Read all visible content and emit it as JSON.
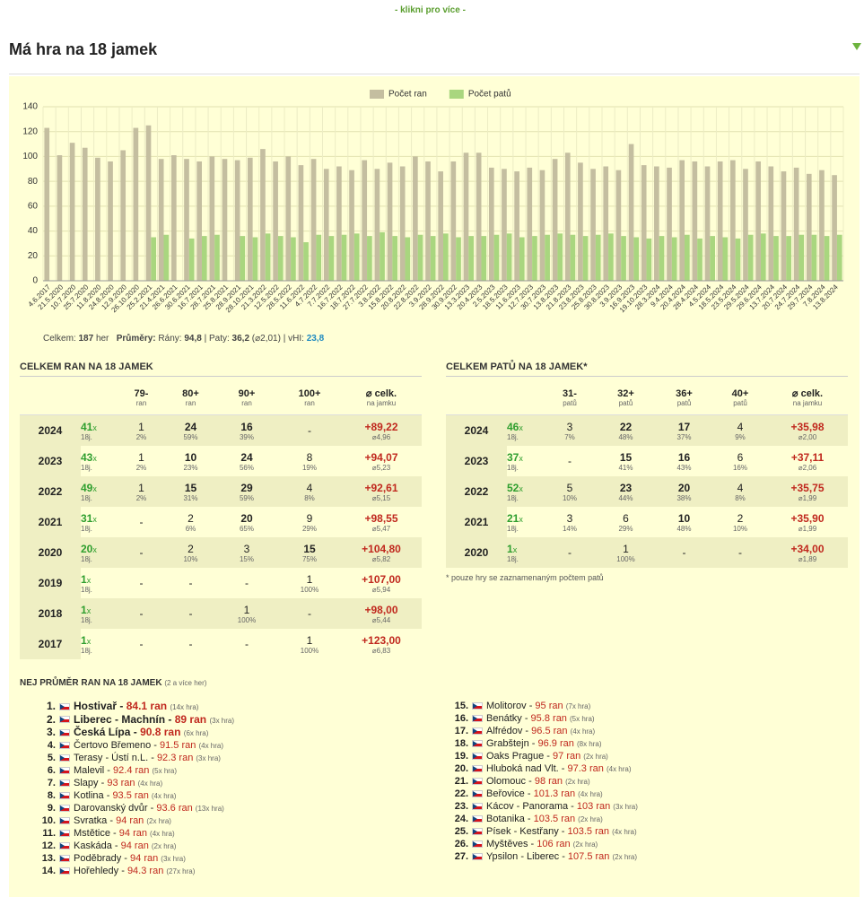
{
  "top_strip": {
    "more": "- klikni pro více -"
  },
  "header": {
    "title": "Má hra na 18 jamek"
  },
  "chart_data": {
    "type": "bar",
    "legend": "top",
    "categories": [
      "4.6.2017",
      "21.5.2020",
      "10.7.2020",
      "25.7.2020",
      "11.8.2020",
      "24.8.2020",
      "12.9.2020",
      "26.10.2020",
      "25.2.2021",
      "21.4.2021",
      "26.6.2021",
      "30.6.2021",
      "16.7.2021",
      "28.7.2021",
      "25.8.2021",
      "28.9.2021",
      "28.10.2021",
      "21.3.2022",
      "12.5.2022",
      "28.5.2022",
      "11.6.2022",
      "4.7.2022",
      "7.7.2022",
      "16.7.2022",
      "18.7.2022",
      "27.7.2022",
      "3.8.2022",
      "15.8.2022",
      "20.8.2022",
      "22.8.2022",
      "3.9.2022",
      "28.9.2022",
      "30.9.2022",
      "13.3.2023",
      "20.4.2023",
      "2.5.2023",
      "18.5.2023",
      "11.6.2023",
      "12.7.2023",
      "30.7.2023",
      "13.8.2023",
      "21.8.2023",
      "23.8.2023",
      "25.8.2023",
      "30.8.2023",
      "3.9.2023",
      "16.9.2023",
      "19.10.2023",
      "28.3.2024",
      "9.4.2024",
      "20.4.2024",
      "28.4.2024",
      "4.5.2024",
      "18.5.2024",
      "23.5.2024",
      "29.5.2024",
      "29.6.2024",
      "13.7.2024",
      "20.7.2024",
      "24.7.2024",
      "29.7.2024",
      "7.8.2024",
      "13.8.2024"
    ],
    "series": [
      {
        "name": "Počet ran",
        "color": "#c4bea0",
        "values": [
          123,
          101,
          111,
          107,
          99,
          96,
          105,
          123,
          125,
          98,
          101,
          98,
          96,
          100,
          98,
          97,
          99,
          106,
          96,
          100,
          93,
          98,
          90,
          92,
          89,
          97,
          90,
          95,
          92,
          100,
          96,
          88,
          96,
          103,
          103,
          91,
          90,
          88,
          91,
          89,
          98,
          103,
          95,
          90,
          92,
          89,
          110,
          93,
          92,
          91,
          97,
          96,
          92,
          96,
          97,
          90,
          96,
          92,
          88,
          91,
          86,
          89,
          85
        ]
      },
      {
        "name": "Počet patů",
        "color": "#a9d67f",
        "values": [
          null,
          null,
          null,
          null,
          null,
          null,
          null,
          null,
          35,
          37,
          null,
          34,
          36,
          37,
          null,
          36,
          35,
          38,
          36,
          35,
          31,
          37,
          36,
          37,
          38,
          36,
          39,
          36,
          35,
          37,
          36,
          38,
          35,
          36,
          36,
          37,
          38,
          35,
          36,
          37,
          38,
          37,
          36,
          37,
          38,
          36,
          35,
          34,
          36,
          35,
          37,
          34,
          36,
          35,
          34,
          37,
          38,
          36,
          36,
          37,
          37,
          36,
          37
        ]
      }
    ],
    "ylim": [
      0,
      140
    ],
    "yticks": [
      0,
      20,
      40,
      60,
      80,
      100,
      120,
      140
    ],
    "grid": true
  },
  "stats": {
    "celkem_label": "Celkem:",
    "celkem": "187",
    "her": "her",
    "prumery": "Průměry:",
    "rany_label": "Rány:",
    "rany": "94,8",
    "sep": "|",
    "paty_label": "Paty:",
    "paty": "36,2",
    "paty_avg": "(⌀2,01)",
    "vhi_label": "vHI:",
    "vhi": "23,8"
  },
  "tables": [
    {
      "title": "CELKEM RAN NA 18 JAMEK",
      "count_unit": "x",
      "count_sub": "18j.",
      "columns": [
        [
          "79-",
          "ran"
        ],
        [
          "80+",
          "ran"
        ],
        [
          "90+",
          "ran"
        ],
        [
          "100+",
          "ran"
        ],
        [
          "⌀ celk.",
          "na jamku"
        ]
      ],
      "rows": [
        {
          "year": "2024",
          "count": "41",
          "cells": [
            [
              "1",
              "2%"
            ],
            [
              "24",
              "59%"
            ],
            [
              "16",
              "39%"
            ],
            [
              "-"
            ]
          ],
          "total": "+89,22",
          "total_sub": "⌀4,96"
        },
        {
          "year": "2023",
          "count": "43",
          "cells": [
            [
              "1",
              "2%"
            ],
            [
              "10",
              "23%"
            ],
            [
              "24",
              "56%"
            ],
            [
              "8",
              "19%"
            ]
          ],
          "total": "+94,07",
          "total_sub": "⌀5,23"
        },
        {
          "year": "2022",
          "count": "49",
          "cells": [
            [
              "1",
              "2%"
            ],
            [
              "15",
              "31%"
            ],
            [
              "29",
              "59%"
            ],
            [
              "4",
              "8%"
            ]
          ],
          "total": "+92,61",
          "total_sub": "⌀5,15"
        },
        {
          "year": "2021",
          "count": "31",
          "cells": [
            [
              "-"
            ],
            [
              "2",
              "6%"
            ],
            [
              "20",
              "65%"
            ],
            [
              "9",
              "29%"
            ]
          ],
          "total": "+98,55",
          "total_sub": "⌀5,47"
        },
        {
          "year": "2020",
          "count": "20",
          "cells": [
            [
              "-"
            ],
            [
              "2",
              "10%"
            ],
            [
              "3",
              "15%"
            ],
            [
              "15",
              "75%"
            ]
          ],
          "total": "+104,80",
          "total_sub": "⌀5,82"
        },
        {
          "year": "2019",
          "count": "1",
          "cells": [
            [
              "-"
            ],
            [
              "-"
            ],
            [
              "-"
            ],
            [
              "1",
              "100%"
            ]
          ],
          "total": "+107,00",
          "total_sub": "⌀5,94"
        },
        {
          "year": "2018",
          "count": "1",
          "cells": [
            [
              "-"
            ],
            [
              "-"
            ],
            [
              "1",
              "100%"
            ],
            [
              "-"
            ]
          ],
          "total": "+98,00",
          "total_sub": "⌀5,44"
        },
        {
          "year": "2017",
          "count": "1",
          "cells": [
            [
              "-"
            ],
            [
              "-"
            ],
            [
              "-"
            ],
            [
              "1",
              "100%"
            ]
          ],
          "total": "+123,00",
          "total_sub": "⌀6,83"
        }
      ]
    },
    {
      "title": "CELKEM PATŮ NA 18 JAMEK*",
      "count_unit": "x",
      "count_sub": "18j.",
      "note": "* pouze hry se zaznamenaným počtem patů",
      "columns": [
        [
          "31-",
          "patů"
        ],
        [
          "32+",
          "patů"
        ],
        [
          "36+",
          "patů"
        ],
        [
          "40+",
          "patů"
        ],
        [
          "⌀ celk.",
          "na jamku"
        ]
      ],
      "rows": [
        {
          "year": "2024",
          "count": "46",
          "cells": [
            [
              "3",
              "7%"
            ],
            [
              "22",
              "48%"
            ],
            [
              "17",
              "37%"
            ],
            [
              "4",
              "9%"
            ]
          ],
          "total": "+35,98",
          "total_sub": "⌀2,00"
        },
        {
          "year": "2023",
          "count": "37",
          "cells": [
            [
              "-"
            ],
            [
              "15",
              "41%"
            ],
            [
              "16",
              "43%"
            ],
            [
              "6",
              "16%"
            ]
          ],
          "total": "+37,11",
          "total_sub": "⌀2,06"
        },
        {
          "year": "2022",
          "count": "52",
          "cells": [
            [
              "5",
              "10%"
            ],
            [
              "23",
              "44%"
            ],
            [
              "20",
              "38%"
            ],
            [
              "4",
              "8%"
            ]
          ],
          "total": "+35,75",
          "total_sub": "⌀1,99"
        },
        {
          "year": "2021",
          "count": "21",
          "cells": [
            [
              "3",
              "14%"
            ],
            [
              "6",
              "29%"
            ],
            [
              "10",
              "48%"
            ],
            [
              "2",
              "10%"
            ]
          ],
          "total": "+35,90",
          "total_sub": "⌀1,99"
        },
        {
          "year": "2020",
          "count": "1",
          "cells": [
            [
              "-"
            ],
            [
              "1",
              "100%"
            ],
            [
              "-"
            ],
            [
              "-"
            ]
          ],
          "total": "+34,00",
          "total_sub": "⌀1,89"
        }
      ]
    }
  ],
  "best": {
    "title": "NEJ PRŮMĚR RAN NA 18 JAMEK",
    "subtitle": "(2 a více her)",
    "dash": "-",
    "unit": "ran",
    "items": [
      {
        "rank": "1.",
        "name": "Hostivař",
        "score": "84.1",
        "games": "(14x hra)"
      },
      {
        "rank": "2.",
        "name": "Liberec - Machnín",
        "score": "89",
        "games": "(3x hra)"
      },
      {
        "rank": "3.",
        "name": "Česká Lípa",
        "score": "90.8",
        "games": "(6x hra)"
      },
      {
        "rank": "4.",
        "name": "Čertovo Břemeno",
        "score": "91.5",
        "games": "(4x hra)"
      },
      {
        "rank": "5.",
        "name": "Terasy - Ústí n.L.",
        "score": "92.3",
        "games": "(3x hra)"
      },
      {
        "rank": "6.",
        "name": "Malevil",
        "score": "92.4",
        "games": "(5x hra)"
      },
      {
        "rank": "7.",
        "name": "Slapy",
        "score": "93",
        "games": "(4x hra)"
      },
      {
        "rank": "8.",
        "name": "Kotlina",
        "score": "93.5",
        "games": "(4x hra)"
      },
      {
        "rank": "9.",
        "name": "Darovanský dvůr",
        "score": "93.6",
        "games": "(13x hra)"
      },
      {
        "rank": "10.",
        "name": "Svratka",
        "score": "94",
        "games": "(2x hra)"
      },
      {
        "rank": "11.",
        "name": "Mstětice",
        "score": "94",
        "games": "(4x hra)"
      },
      {
        "rank": "12.",
        "name": "Kaskáda",
        "score": "94",
        "games": "(2x hra)"
      },
      {
        "rank": "13.",
        "name": "Poděbrady",
        "score": "94",
        "games": "(3x hra)"
      },
      {
        "rank": "14.",
        "name": "Hořehledy",
        "score": "94.3",
        "games": "(27x hra)"
      },
      {
        "rank": "15.",
        "name": "Molitorov",
        "score": "95",
        "games": "(7x hra)"
      },
      {
        "rank": "16.",
        "name": "Benátky",
        "score": "95.8",
        "games": "(5x hra)"
      },
      {
        "rank": "17.",
        "name": "Alfrédov",
        "score": "96.5",
        "games": "(4x hra)"
      },
      {
        "rank": "18.",
        "name": "Grabštejn",
        "score": "96.9",
        "games": "(8x hra)"
      },
      {
        "rank": "19.",
        "name": "Oaks Prague",
        "score": "97",
        "games": "(2x hra)"
      },
      {
        "rank": "20.",
        "name": "Hluboká nad Vlt.",
        "score": "97.3",
        "games": "(4x hra)"
      },
      {
        "rank": "21.",
        "name": "Olomouc",
        "score": "98",
        "games": "(2x hra)"
      },
      {
        "rank": "22.",
        "name": "Beřovice",
        "score": "101.3",
        "games": "(4x hra)"
      },
      {
        "rank": "23.",
        "name": "Kácov - Panorama",
        "score": "103",
        "games": "(3x hra)"
      },
      {
        "rank": "24.",
        "name": "Botanika",
        "score": "103.5",
        "games": "(2x hra)"
      },
      {
        "rank": "25.",
        "name": "Písek - Kestřany",
        "score": "103.5",
        "games": "(4x hra)"
      },
      {
        "rank": "26.",
        "name": "Myštěves",
        "score": "106",
        "games": "(2x hra)"
      },
      {
        "rank": "27.",
        "name": "Ypsilon - Liberec",
        "score": "107.5",
        "games": "(2x hra)"
      }
    ]
  }
}
